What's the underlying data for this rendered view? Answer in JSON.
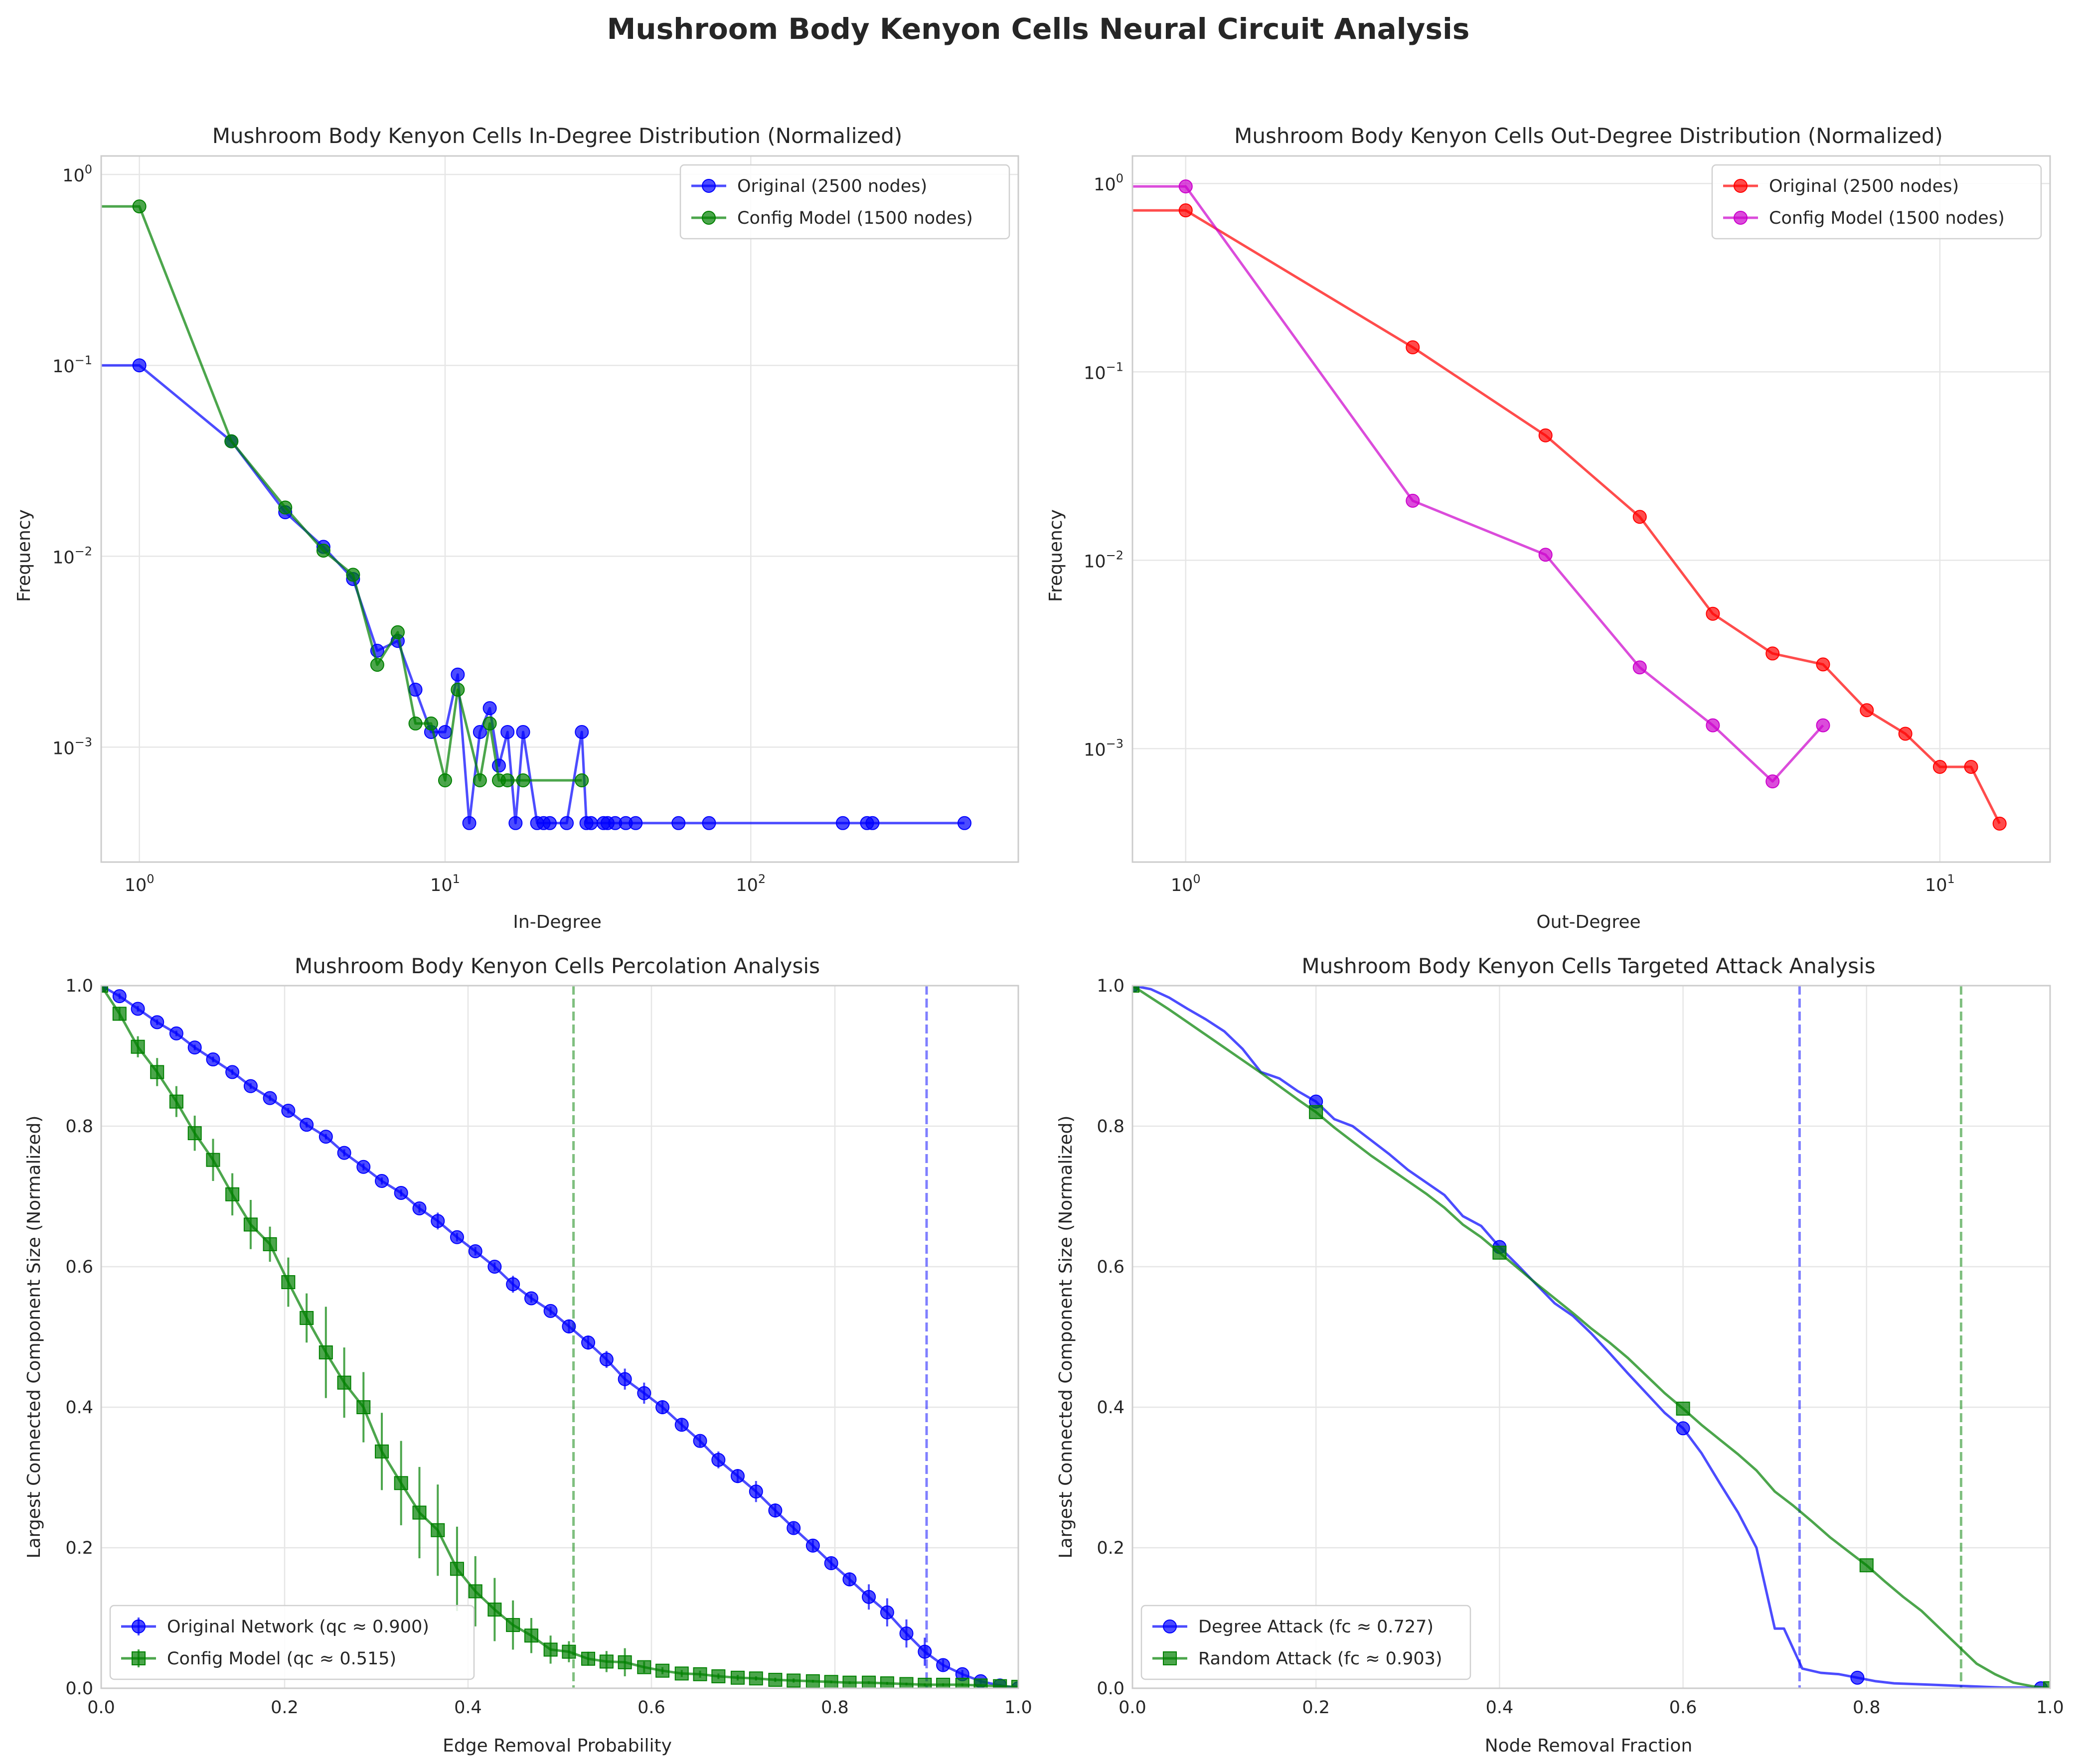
{
  "figure": {
    "title": "Mushroom Body Kenyon Cells Neural Circuit Analysis"
  },
  "chart_data": [
    {
      "id": "in-degree",
      "type": "line",
      "title": "Mushroom Body Kenyon Cells In-Degree Distribution (Normalized)",
      "xlabel": "In-Degree",
      "ylabel": "Frequency",
      "xscale": "log",
      "yscale": "log",
      "xlim": [
        0.75,
        750
      ],
      "ylim": [
        0.00025,
        1.25
      ],
      "grid": true,
      "legend": "top-right",
      "x_ticks": [
        {
          "v": 1,
          "m": "0"
        },
        {
          "v": 10,
          "m": "1"
        },
        {
          "v": 100,
          "m": "2"
        }
      ],
      "y_ticks": [
        {
          "v": 0.001,
          "m": "−3"
        },
        {
          "v": 0.01,
          "m": "−2"
        },
        {
          "v": 0.1,
          "m": "−1"
        },
        {
          "v": 1,
          "m": "0"
        }
      ],
      "series": [
        {
          "name": "Original (2500 nodes)",
          "color": "#0000ff",
          "marker": "circle",
          "x": [
            0,
            1,
            2,
            3,
            4,
            5,
            6,
            7,
            8,
            9,
            10,
            11,
            12,
            13,
            14,
            15,
            16,
            17,
            18,
            20,
            21,
            22,
            25,
            28,
            29,
            30,
            33,
            34,
            36,
            39,
            42,
            58,
            73,
            200,
            240,
            250,
            500
          ],
          "y": [
            0.1,
            0.1,
            0.04,
            0.017,
            0.0112,
            0.0076,
            0.0032,
            0.0036,
            0.002,
            0.0012,
            0.0012,
            0.0024,
            0.0004,
            0.0012,
            0.0016,
            0.0008,
            0.0012,
            0.0004,
            0.0012,
            0.0004,
            0.0004,
            0.0004,
            0.0004,
            0.0012,
            0.0004,
            0.0004,
            0.0004,
            0.0004,
            0.0004,
            0.0004,
            0.0004,
            0.0004,
            0.0004,
            0.0004,
            0.0004,
            0.0004,
            0.0004
          ]
        },
        {
          "name": "Config Model (1500 nodes)",
          "color": "#008000",
          "marker": "circle",
          "x": [
            0,
            1,
            2,
            3,
            4,
            5,
            6,
            7,
            8,
            9,
            10,
            11,
            13,
            14,
            15,
            16,
            18,
            28
          ],
          "y": [
            0.68,
            0.68,
            0.04,
            0.018,
            0.0107,
            0.008,
            0.0027,
            0.004,
            0.00133,
            0.00133,
            0.00067,
            0.002,
            0.00067,
            0.00133,
            0.00067,
            0.00067,
            0.00067,
            0.00067
          ]
        }
      ]
    },
    {
      "id": "out-degree",
      "type": "line",
      "title": "Mushroom Body Kenyon Cells Out-Degree Distribution (Normalized)",
      "xlabel": "Out-Degree",
      "ylabel": "Frequency",
      "xscale": "log",
      "yscale": "log",
      "xlim": [
        0.85,
        14
      ],
      "ylim": [
        0.00025,
        1.4
      ],
      "grid": true,
      "legend": "top-right",
      "x_ticks": [
        {
          "v": 1,
          "m": "0"
        },
        {
          "v": 10,
          "m": "1"
        }
      ],
      "y_ticks": [
        {
          "v": 0.001,
          "m": "−3"
        },
        {
          "v": 0.01,
          "m": "−2"
        },
        {
          "v": 0.1,
          "m": "−1"
        },
        {
          "v": 1,
          "m": "0"
        }
      ],
      "series": [
        {
          "name": "Original (2500 nodes)",
          "color": "#ff0000",
          "marker": "circle",
          "x": [
            0,
            1,
            2,
            3,
            4,
            5,
            6,
            7,
            8,
            9,
            10,
            11,
            12
          ],
          "y": [
            0.72,
            0.72,
            0.135,
            0.046,
            0.017,
            0.0052,
            0.0032,
            0.0028,
            0.0016,
            0.0012,
            0.0008,
            0.0008,
            0.0004
          ]
        },
        {
          "name": "Config Model (1500 nodes)",
          "color": "#cc00cc",
          "marker": "circle",
          "x": [
            0,
            1,
            2,
            3,
            4,
            5,
            6,
            7
          ],
          "y": [
            0.965,
            0.965,
            0.0207,
            0.0107,
            0.0027,
            0.00133,
            0.00067,
            0.00133
          ]
        }
      ]
    },
    {
      "id": "percolation",
      "type": "line",
      "title": "Mushroom Body Kenyon Cells Percolation Analysis",
      "xlabel": "Edge Removal Probability",
      "ylabel": "Largest Connected Component Size (Normalized)",
      "xlim": [
        0,
        1
      ],
      "ylim": [
        0,
        1
      ],
      "grid": true,
      "legend": "bottom-left",
      "x_ticks": [
        0,
        0.2,
        0.4,
        0.6,
        0.8,
        1
      ],
      "y_ticks": [
        0,
        0.2,
        0.4,
        0.6,
        0.8,
        1
      ],
      "x_tick_labels": [
        "0.0",
        "0.2",
        "0.4",
        "0.6",
        "0.8",
        "1.0"
      ],
      "y_tick_labels": [
        "0.0",
        "0.2",
        "0.4",
        "0.6",
        "0.8",
        "1.0"
      ],
      "vlines": [
        {
          "x": 0.515,
          "color": "#008000"
        },
        {
          "x": 0.9,
          "color": "#0000ff"
        }
      ],
      "series": [
        {
          "name": "Original Network (qc ≈ 0.900)",
          "color": "#0000ff",
          "marker": "circle",
          "x": [
            0,
            0.02,
            0.04,
            0.061,
            0.082,
            0.102,
            0.122,
            0.143,
            0.163,
            0.184,
            0.204,
            0.224,
            0.245,
            0.265,
            0.286,
            0.306,
            0.327,
            0.347,
            0.367,
            0.388,
            0.408,
            0.429,
            0.449,
            0.469,
            0.49,
            0.51,
            0.531,
            0.551,
            0.571,
            0.592,
            0.612,
            0.633,
            0.653,
            0.673,
            0.694,
            0.714,
            0.735,
            0.755,
            0.776,
            0.796,
            0.816,
            0.837,
            0.857,
            0.878,
            0.898,
            0.918,
            0.939,
            0.959,
            0.98,
            1.0
          ],
          "y": [
            1.0,
            0.985,
            0.967,
            0.948,
            0.932,
            0.912,
            0.895,
            0.877,
            0.857,
            0.84,
            0.822,
            0.802,
            0.785,
            0.762,
            0.742,
            0.722,
            0.705,
            0.683,
            0.665,
            0.642,
            0.622,
            0.6,
            0.575,
            0.555,
            0.537,
            0.515,
            0.492,
            0.468,
            0.44,
            0.42,
            0.4,
            0.375,
            0.352,
            0.325,
            0.302,
            0.28,
            0.253,
            0.228,
            0.203,
            0.178,
            0.155,
            0.13,
            0.108,
            0.078,
            0.052,
            0.033,
            0.02,
            0.01,
            0.004,
            0.0
          ],
          "err": [
            0,
            0.004,
            0.004,
            0.004,
            0.004,
            0.004,
            0.004,
            0.004,
            0.004,
            0.004,
            0.004,
            0.004,
            0.004,
            0.005,
            0.005,
            0.005,
            0.005,
            0.006,
            0.012,
            0.006,
            0.006,
            0.006,
            0.012,
            0.006,
            0.006,
            0.01,
            0.01,
            0.012,
            0.015,
            0.015,
            0.01,
            0.008,
            0.008,
            0.012,
            0.01,
            0.015,
            0.01,
            0.008,
            0.008,
            0.008,
            0.01,
            0.018,
            0.02,
            0.02,
            0.02,
            0.008,
            0.006,
            0.004,
            0.002,
            0
          ]
        },
        {
          "name": "Config Model (qc ≈ 0.515)",
          "color": "#008000",
          "marker": "square",
          "x": [
            0,
            0.02,
            0.04,
            0.061,
            0.082,
            0.102,
            0.122,
            0.143,
            0.163,
            0.184,
            0.204,
            0.224,
            0.245,
            0.265,
            0.286,
            0.306,
            0.327,
            0.347,
            0.367,
            0.388,
            0.408,
            0.429,
            0.449,
            0.469,
            0.49,
            0.51,
            0.531,
            0.551,
            0.571,
            0.592,
            0.612,
            0.633,
            0.653,
            0.673,
            0.694,
            0.714,
            0.735,
            0.755,
            0.776,
            0.796,
            0.816,
            0.837,
            0.857,
            0.878,
            0.898,
            0.918,
            0.939,
            0.959,
            0.98,
            1.0
          ],
          "y": [
            1.0,
            0.96,
            0.913,
            0.877,
            0.835,
            0.79,
            0.752,
            0.703,
            0.66,
            0.632,
            0.578,
            0.527,
            0.478,
            0.435,
            0.4,
            0.337,
            0.292,
            0.25,
            0.225,
            0.17,
            0.138,
            0.112,
            0.09,
            0.075,
            0.055,
            0.052,
            0.042,
            0.038,
            0.037,
            0.03,
            0.025,
            0.021,
            0.02,
            0.017,
            0.015,
            0.014,
            0.012,
            0.011,
            0.01,
            0.009,
            0.008,
            0.008,
            0.007,
            0.006,
            0.005,
            0.005,
            0.005,
            0.004,
            0.003,
            0.002
          ],
          "err": [
            0,
            0.01,
            0.015,
            0.02,
            0.022,
            0.025,
            0.03,
            0.03,
            0.035,
            0.025,
            0.035,
            0.035,
            0.065,
            0.05,
            0.05,
            0.055,
            0.06,
            0.065,
            0.065,
            0.06,
            0.05,
            0.045,
            0.035,
            0.025,
            0.02,
            0.015,
            0.01,
            0.015,
            0.02,
            0.008,
            0.005,
            0.005,
            0.005,
            0.004,
            0.004,
            0.003,
            0.003,
            0.003,
            0.002,
            0.002,
            0.002,
            0.002,
            0.002,
            0.002,
            0.002,
            0.002,
            0.002,
            0.001,
            0.001,
            0.001
          ]
        }
      ]
    },
    {
      "id": "targeted-attack",
      "type": "line",
      "title": "Mushroom Body Kenyon Cells Targeted Attack Analysis",
      "xlabel": "Node Removal Fraction",
      "ylabel": "Largest Connected Component Size (Normalized)",
      "xlim": [
        0,
        1
      ],
      "ylim": [
        0,
        1
      ],
      "grid": true,
      "legend": "bottom-left",
      "x_ticks": [
        0,
        0.2,
        0.4,
        0.6,
        0.8,
        1
      ],
      "y_ticks": [
        0,
        0.2,
        0.4,
        0.6,
        0.8,
        1
      ],
      "x_tick_labels": [
        "0.0",
        "0.2",
        "0.4",
        "0.6",
        "0.8",
        "1.0"
      ],
      "y_tick_labels": [
        "0.0",
        "0.2",
        "0.4",
        "0.6",
        "0.8",
        "1.0"
      ],
      "vlines": [
        {
          "x": 0.727,
          "color": "#0000ff"
        },
        {
          "x": 0.903,
          "color": "#008000"
        }
      ],
      "series": [
        {
          "name": "Degree Attack (fc ≈ 0.727)",
          "color": "#0000ff",
          "marker": "circle",
          "marker_every": 10,
          "x": [
            0,
            0.02,
            0.04,
            0.06,
            0.08,
            0.1,
            0.12,
            0.14,
            0.16,
            0.18,
            0.2,
            0.22,
            0.24,
            0.26,
            0.28,
            0.3,
            0.32,
            0.34,
            0.36,
            0.38,
            0.4,
            0.42,
            0.44,
            0.46,
            0.48,
            0.5,
            0.52,
            0.54,
            0.56,
            0.58,
            0.6,
            0.62,
            0.64,
            0.66,
            0.68,
            0.7,
            0.71,
            0.73,
            0.75,
            0.77,
            0.79,
            0.81,
            0.83,
            0.85,
            0.87,
            0.89,
            0.91,
            0.93,
            0.95,
            0.97,
            0.99
          ],
          "y": [
            1.0,
            0.995,
            0.983,
            0.967,
            0.952,
            0.935,
            0.91,
            0.877,
            0.868,
            0.85,
            0.835,
            0.81,
            0.8,
            0.78,
            0.76,
            0.738,
            0.72,
            0.702,
            0.672,
            0.658,
            0.628,
            0.602,
            0.575,
            0.548,
            0.53,
            0.505,
            0.477,
            0.448,
            0.42,
            0.392,
            0.37,
            0.335,
            0.292,
            0.25,
            0.2,
            0.085,
            0.085,
            0.028,
            0.022,
            0.02,
            0.015,
            0.01,
            0.007,
            0.006,
            0.005,
            0.004,
            0.003,
            0.002,
            0.001,
            0.001,
            0.0
          ]
        },
        {
          "name": "Random Attack (fc ≈ 0.903)",
          "color": "#008000",
          "marker": "square",
          "marker_every": 10,
          "x": [
            0,
            0.02,
            0.04,
            0.06,
            0.08,
            0.1,
            0.12,
            0.14,
            0.16,
            0.18,
            0.2,
            0.22,
            0.24,
            0.26,
            0.28,
            0.3,
            0.32,
            0.34,
            0.36,
            0.38,
            0.4,
            0.42,
            0.44,
            0.46,
            0.48,
            0.5,
            0.52,
            0.54,
            0.56,
            0.58,
            0.6,
            0.62,
            0.64,
            0.66,
            0.68,
            0.7,
            0.72,
            0.74,
            0.76,
            0.78,
            0.8,
            0.82,
            0.84,
            0.86,
            0.88,
            0.9,
            0.92,
            0.94,
            0.96,
            0.98,
            1.0
          ],
          "y": [
            1.0,
            0.983,
            0.966,
            0.948,
            0.93,
            0.912,
            0.894,
            0.876,
            0.857,
            0.838,
            0.82,
            0.798,
            0.778,
            0.758,
            0.74,
            0.722,
            0.704,
            0.684,
            0.66,
            0.642,
            0.62,
            0.598,
            0.576,
            0.555,
            0.534,
            0.512,
            0.492,
            0.47,
            0.445,
            0.42,
            0.398,
            0.375,
            0.354,
            0.333,
            0.31,
            0.28,
            0.26,
            0.238,
            0.215,
            0.195,
            0.175,
            0.152,
            0.13,
            0.11,
            0.085,
            0.06,
            0.035,
            0.02,
            0.008,
            0.003,
            0.0
          ]
        }
      ]
    }
  ]
}
